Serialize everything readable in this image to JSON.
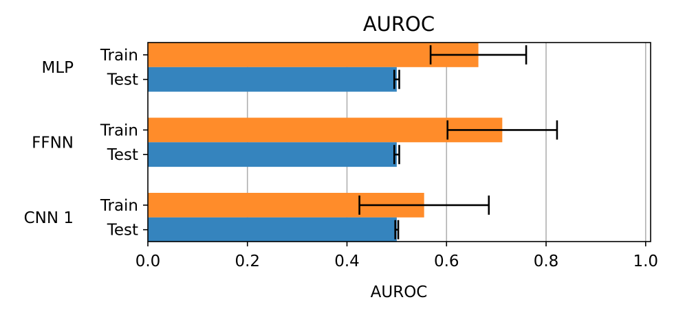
{
  "chart_data": {
    "type": "bar",
    "orientation": "horizontal",
    "title": "AUROC",
    "xlabel": "AUROC",
    "ylabel": "",
    "xlim": [
      0,
      1.01
    ],
    "x_ticks": [
      "0.0",
      "0.2",
      "0.4",
      "0.6",
      "0.8",
      "1.0"
    ],
    "x_tick_values": [
      0.0,
      0.2,
      0.4,
      0.6,
      0.8,
      1.0
    ],
    "grid": "vertical",
    "groups": [
      {
        "name": "MLP",
        "bars": [
          {
            "label": "Train",
            "value": 0.664,
            "error": 0.096
          },
          {
            "label": "Test",
            "value": 0.5,
            "error": 0.005
          }
        ]
      },
      {
        "name": "FFNN",
        "bars": [
          {
            "label": "Train",
            "value": 0.712,
            "error": 0.11
          },
          {
            "label": "Test",
            "value": 0.5,
            "error": 0.005
          }
        ]
      },
      {
        "name": "CNN 1",
        "bars": [
          {
            "label": "Train",
            "value": 0.555,
            "error": 0.13
          },
          {
            "label": "Test",
            "value": 0.5,
            "error": 0.003
          }
        ]
      }
    ],
    "colors": {
      "Train": "#ff8c2a",
      "Test": "#3584be",
      "error_bar": "#000000",
      "grid": "#b0b0b0"
    }
  }
}
